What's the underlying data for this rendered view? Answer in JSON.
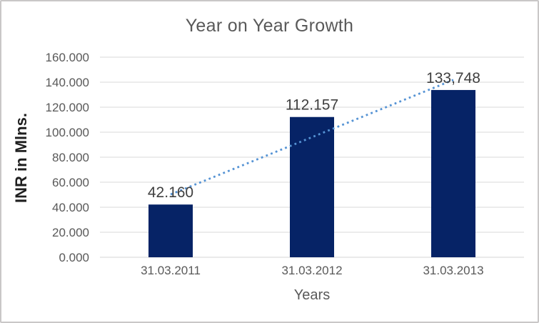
{
  "chart_data": {
    "type": "bar",
    "title": "Year on Year Growth",
    "xlabel": "Years",
    "ylabel": "INR in Mlns.",
    "categories": [
      "31.03.2011",
      "31.03.2012",
      "31.03.2013"
    ],
    "values": [
      42.16,
      112.157,
      133.748
    ],
    "data_labels": [
      "42.160",
      "112.157",
      "133,748"
    ],
    "yticks": [
      {
        "value": 0,
        "label": "0.000"
      },
      {
        "value": 20,
        "label": "20.000"
      },
      {
        "value": 40,
        "label": "40.000"
      },
      {
        "value": 60,
        "label": "60.000"
      },
      {
        "value": 80,
        "label": "80.000"
      },
      {
        "value": 100,
        "label": "100.000"
      },
      {
        "value": 120,
        "label": "120.000"
      },
      {
        "value": 140,
        "label": "140.000"
      },
      {
        "value": 160,
        "label": "160.000"
      }
    ],
    "ylim": [
      0,
      160
    ],
    "grid": true,
    "legend": false,
    "trendline": {
      "type": "linear",
      "style": "dotted"
    },
    "colors": {
      "bar": "#062366",
      "trendline": "#5593d4",
      "gridline": "#d9d9d9",
      "axis_line": "#d6d6d6",
      "title_text": "#595959",
      "tick_text": "#595959",
      "data_label_text": "#3f3f3f",
      "axis_title_text": "#1f1f1f",
      "frame_border": "#c9c7c7"
    }
  }
}
